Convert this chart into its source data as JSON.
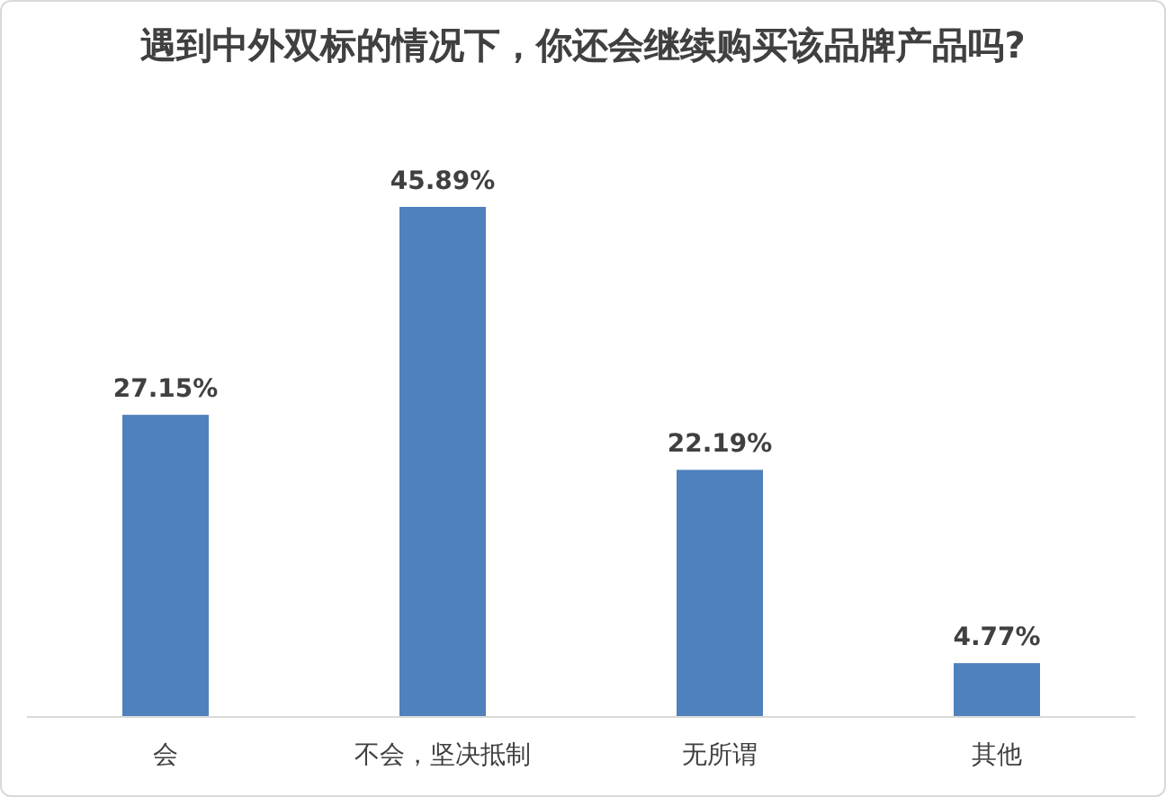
{
  "chart_data": {
    "type": "bar",
    "title": "遇到中外双标的情况下，你还会继续购买该品牌产品吗?",
    "categories": [
      "会",
      "不会，坚决抵制",
      "无所谓",
      "其他"
    ],
    "values": [
      27.15,
      45.89,
      22.19,
      4.77
    ],
    "value_labels": [
      "27.15%",
      "45.89%",
      "22.19%",
      "4.77%"
    ],
    "color": "#4f81bd"
  }
}
